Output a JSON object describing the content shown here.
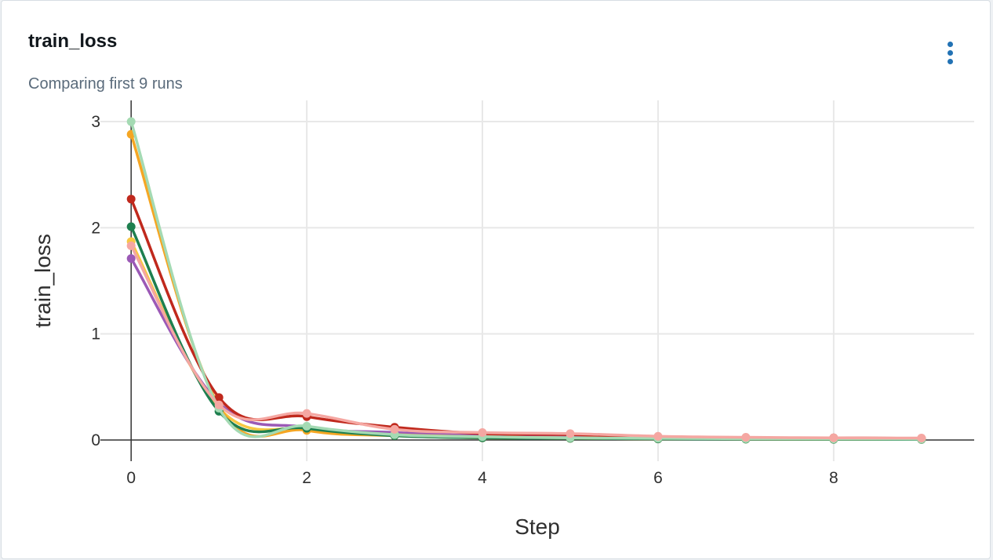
{
  "panel": {
    "title": "train_loss",
    "subtitle": "Comparing first 9 runs",
    "menu_icon": "kebab-vertical-icon"
  },
  "chart_data": {
    "type": "line",
    "xlabel": "Step",
    "ylabel": "train_loss",
    "xlim": [
      -0.35,
      9.6
    ],
    "ylim": [
      -0.2,
      3.2
    ],
    "x_ticks": [
      0,
      2,
      4,
      6,
      8
    ],
    "y_ticks": [
      0,
      1,
      2,
      3
    ],
    "grid": true,
    "markers": true,
    "x": [
      0,
      1,
      2,
      3,
      4,
      5,
      6,
      7,
      8,
      9
    ],
    "series": [
      {
        "color": "#9b59b6",
        "values": [
          1.71,
          0.35,
          0.12,
          0.07,
          0.04,
          0.03,
          0.02,
          0.015,
          0.012,
          0.01
        ]
      },
      {
        "color": "#f7c843",
        "values": [
          1.87,
          0.3,
          0.1,
          0.05,
          0.03,
          0.02,
          0.015,
          0.012,
          0.01,
          0.008
        ]
      },
      {
        "color": "#f5a623",
        "values": [
          2.88,
          0.32,
          0.09,
          0.04,
          0.02,
          0.015,
          0.01,
          0.008,
          0.006,
          0.005
        ]
      },
      {
        "color": "#1e7f4f",
        "values": [
          2.01,
          0.27,
          0.11,
          0.04,
          0.02,
          0.015,
          0.01,
          0.008,
          0.006,
          0.005
        ]
      },
      {
        "color": "#c0291d",
        "values": [
          2.27,
          0.4,
          0.22,
          0.12,
          0.06,
          0.05,
          0.03,
          0.02,
          0.02,
          0.015
        ]
      },
      {
        "color": "#a4dab3",
        "values": [
          3.0,
          0.3,
          0.13,
          0.05,
          0.03,
          0.02,
          0.015,
          0.012,
          0.01,
          0.008
        ]
      },
      {
        "color": "#f5a7a2",
        "values": [
          1.83,
          0.33,
          0.25,
          0.1,
          0.07,
          0.06,
          0.035,
          0.025,
          0.02,
          0.018
        ]
      }
    ]
  }
}
